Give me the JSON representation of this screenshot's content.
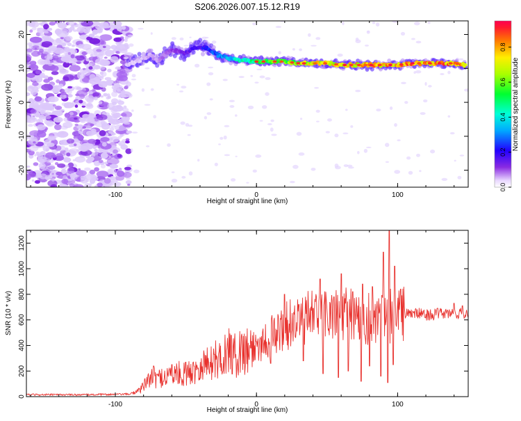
{
  "page_title": "S206.2026.007.15.12.R19",
  "chart_data": [
    {
      "type": "heatmap",
      "title": "",
      "xlabel": "Height of straight line (km)",
      "ylabel": "Frequency (Hz)",
      "xlim": [
        -163,
        150
      ],
      "ylim": [
        -25,
        24
      ],
      "xticks": [
        -100,
        0,
        100
      ],
      "yticks": [
        -20,
        -10,
        0,
        10,
        20
      ],
      "colorbar": {
        "label": "Normalized spectral amplitude",
        "range": [
          0,
          0.95
        ],
        "ticks": [
          0.0,
          0.2,
          0.4,
          0.6,
          0.8
        ]
      },
      "noise_region_x": [
        -163,
        -90
      ],
      "ridge": {
        "x": [
          -92,
          -85,
          -80,
          -75,
          -70,
          -65,
          -60,
          -55,
          -50,
          -45,
          -40,
          -35,
          -30,
          -25,
          -20,
          -15,
          -10,
          -5,
          0,
          10,
          20,
          30,
          40,
          50,
          60,
          70,
          80,
          90,
          100,
          110,
          120,
          130,
          140,
          148
        ],
        "freq": [
          11,
          12,
          13,
          14,
          12,
          14,
          15.5,
          15,
          14.5,
          16,
          16.5,
          16,
          14.5,
          13.5,
          13,
          12.5,
          12.5,
          12,
          12,
          12,
          12,
          11.5,
          11.5,
          11.5,
          11,
          11,
          11,
          11,
          11,
          11.5,
          11.5,
          11.5,
          11.5,
          11
        ],
        "amplitude": [
          0.05,
          0.05,
          0.06,
          0.07,
          0.08,
          0.1,
          0.12,
          0.14,
          0.16,
          0.2,
          0.22,
          0.25,
          0.3,
          0.35,
          0.4,
          0.45,
          0.5,
          0.55,
          0.6,
          0.65,
          0.7,
          0.75,
          0.8,
          0.82,
          0.85,
          0.85,
          0.88,
          0.9,
          0.9,
          0.92,
          0.92,
          0.93,
          0.93,
          0.92
        ]
      }
    },
    {
      "type": "line",
      "title": "",
      "xlabel": "Height of straight line (km)",
      "ylabel": "SNR (10 * v/v)",
      "xlim": [
        -163,
        150
      ],
      "ylim": [
        0,
        1300
      ],
      "xticks": [
        -100,
        0,
        100
      ],
      "yticks": [
        0,
        200,
        400,
        600,
        800,
        1000,
        1200
      ],
      "grid": false,
      "series": [
        {
          "color": "#e8322e",
          "x": [
            -163,
            -140,
            -120,
            -100,
            -90,
            -85,
            -80,
            -75,
            -70,
            -65,
            -60,
            -55,
            -50,
            -45,
            -40,
            -35,
            -30,
            -25,
            -20,
            -15,
            -10,
            -5,
            0,
            5,
            10,
            15,
            20,
            25,
            30,
            35,
            40,
            45,
            50,
            55,
            60,
            65,
            70,
            75,
            80,
            85,
            90,
            95,
            100,
            105,
            110,
            115,
            120,
            125,
            130,
            135,
            140,
            145,
            150
          ],
          "values": [
            15,
            15,
            15,
            18,
            20,
            40,
            80,
            150,
            140,
            160,
            170,
            180,
            170,
            200,
            250,
            260,
            280,
            310,
            350,
            320,
            360,
            380,
            400,
            430,
            470,
            500,
            540,
            580,
            600,
            610,
            620,
            630,
            650,
            640,
            630,
            640,
            620,
            630,
            600,
            620,
            610,
            640,
            650,
            650,
            650,
            650,
            640,
            640,
            650,
            650,
            650,
            650,
            650
          ],
          "spikes": [
            {
              "x": -73,
              "y": 240
            },
            {
              "x": -60,
              "y": 250
            },
            {
              "x": -50,
              "y": 270
            },
            {
              "x": -30,
              "y": 330
            },
            {
              "x": -18,
              "y": 480
            },
            {
              "x": 0,
              "y": 430
            },
            {
              "x": 20,
              "y": 800
            },
            {
              "x": 30,
              "y": 720
            },
            {
              "x": 40,
              "y": 690
            },
            {
              "x": 45,
              "y": 920
            },
            {
              "x": 55,
              "y": 780
            },
            {
              "x": 60,
              "y": 960
            },
            {
              "x": 68,
              "y": 820
            },
            {
              "x": 75,
              "y": 880
            },
            {
              "x": 82,
              "y": 860
            },
            {
              "x": 90,
              "y": 1130
            },
            {
              "x": 94,
              "y": 1300
            },
            {
              "x": 98,
              "y": 1020
            },
            {
              "x": 102,
              "y": 840
            },
            {
              "x": 140,
              "y": 730
            },
            {
              "x": 146,
              "y": 710
            }
          ],
          "dips": [
            {
              "x": 10,
              "y": 260
            },
            {
              "x": 33,
              "y": 280
            },
            {
              "x": 47,
              "y": 180
            },
            {
              "x": 58,
              "y": 150
            },
            {
              "x": 65,
              "y": 200
            },
            {
              "x": 74,
              "y": 120
            },
            {
              "x": 80,
              "y": 240
            },
            {
              "x": 88,
              "y": 160
            },
            {
              "x": 93,
              "y": 110
            },
            {
              "x": 97,
              "y": 250
            }
          ]
        }
      ]
    }
  ]
}
